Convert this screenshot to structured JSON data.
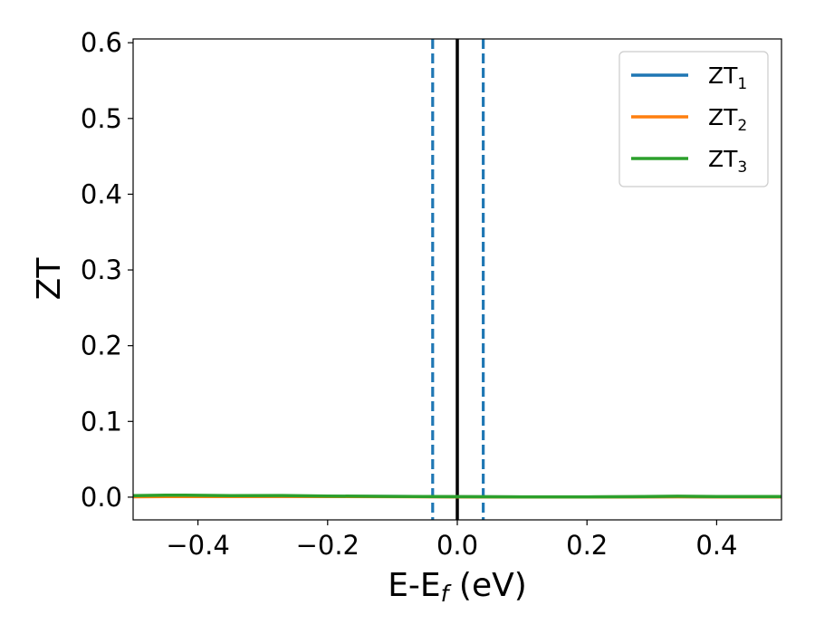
{
  "chart_data": {
    "type": "line",
    "xlabel": {
      "main": "E-E",
      "sub": "f",
      "suffix": " (eV)"
    },
    "ylabel": "ZT",
    "xlim": [
      -0.5,
      0.5
    ],
    "ylim": [
      -0.03,
      0.605
    ],
    "xticks": [
      -0.4,
      -0.2,
      0.0,
      0.2,
      0.4
    ],
    "xtick_labels": [
      "−0.4",
      "−0.2",
      "0.0",
      "0.2",
      "0.4"
    ],
    "yticks": [
      0.0,
      0.1,
      0.2,
      0.3,
      0.4,
      0.5,
      0.6
    ],
    "ytick_labels": [
      "0.0",
      "0.1",
      "0.2",
      "0.3",
      "0.4",
      "0.5",
      "0.6"
    ],
    "grid": false,
    "legend_position": "top-right",
    "x": [
      -0.5,
      -0.45,
      -0.42,
      -0.35,
      -0.27,
      -0.2,
      -0.1,
      0.0,
      0.1,
      0.2,
      0.27,
      0.34,
      0.4,
      0.45,
      0.5
    ],
    "series": [
      {
        "name": "ZT",
        "sub": "1",
        "color": "#1f77b4",
        "values": [
          0.001,
          0.001,
          0.001,
          0.001,
          0.001,
          0.001,
          0.001,
          0.0005,
          0.0003,
          0.0003,
          0.0004,
          0.0006,
          0.0004,
          0.0004,
          0.0004
        ]
      },
      {
        "name": "ZT",
        "sub": "2",
        "color": "#ff7f0e",
        "values": [
          0.0005,
          0.0008,
          0.0008,
          0.0008,
          0.001,
          0.0008,
          0.0006,
          0.0004,
          0.0003,
          0.0003,
          0.0004,
          0.0005,
          0.0004,
          0.0004,
          0.0004
        ]
      },
      {
        "name": "ZT",
        "sub": "3",
        "color": "#2ca02c",
        "values": [
          0.002,
          0.0025,
          0.0025,
          0.002,
          0.0022,
          0.0015,
          0.001,
          0.0006,
          0.0004,
          0.0004,
          0.0006,
          0.0012,
          0.0008,
          0.0008,
          0.0007
        ]
      }
    ],
    "vlines": [
      {
        "x": 0.0,
        "color": "#000000",
        "style": "solid"
      },
      {
        "x": -0.038,
        "color": "#1f77b4",
        "style": "dashed"
      },
      {
        "x": 0.04,
        "color": "#1f77b4",
        "style": "dashed"
      }
    ]
  }
}
